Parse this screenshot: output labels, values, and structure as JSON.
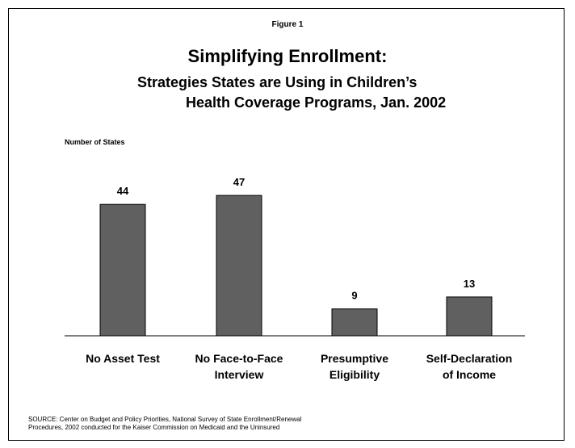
{
  "figure_label": "Figure 1",
  "source": {
    "line1": "SOURCE: Center on Budget and Policy Priorities, National Survey of State Enrollment/Renewal",
    "line2": "Procedures, 2002 conducted for the Kaiser Commission on Medicaid and the Uninsured"
  },
  "colors": {
    "bar": "#606060",
    "bar_stroke": "#000000"
  },
  "chart_data": {
    "type": "bar",
    "title": "Simplifying Enrollment:",
    "subtitle_line1": "Strategies States are Using in Children’s",
    "subtitle_line2": "Health Coverage Programs, Jan. 2002",
    "ylabel": "Number of States",
    "xlabel": "",
    "ylim": [
      0,
      50
    ],
    "grid": false,
    "categories": [
      [
        "No Asset Test"
      ],
      [
        "No Face-to-Face",
        "Interview"
      ],
      [
        "Presumptive",
        "Eligibility"
      ],
      [
        "Self-Declaration",
        "of Income"
      ]
    ],
    "values": [
      44,
      47,
      9,
      13
    ]
  }
}
